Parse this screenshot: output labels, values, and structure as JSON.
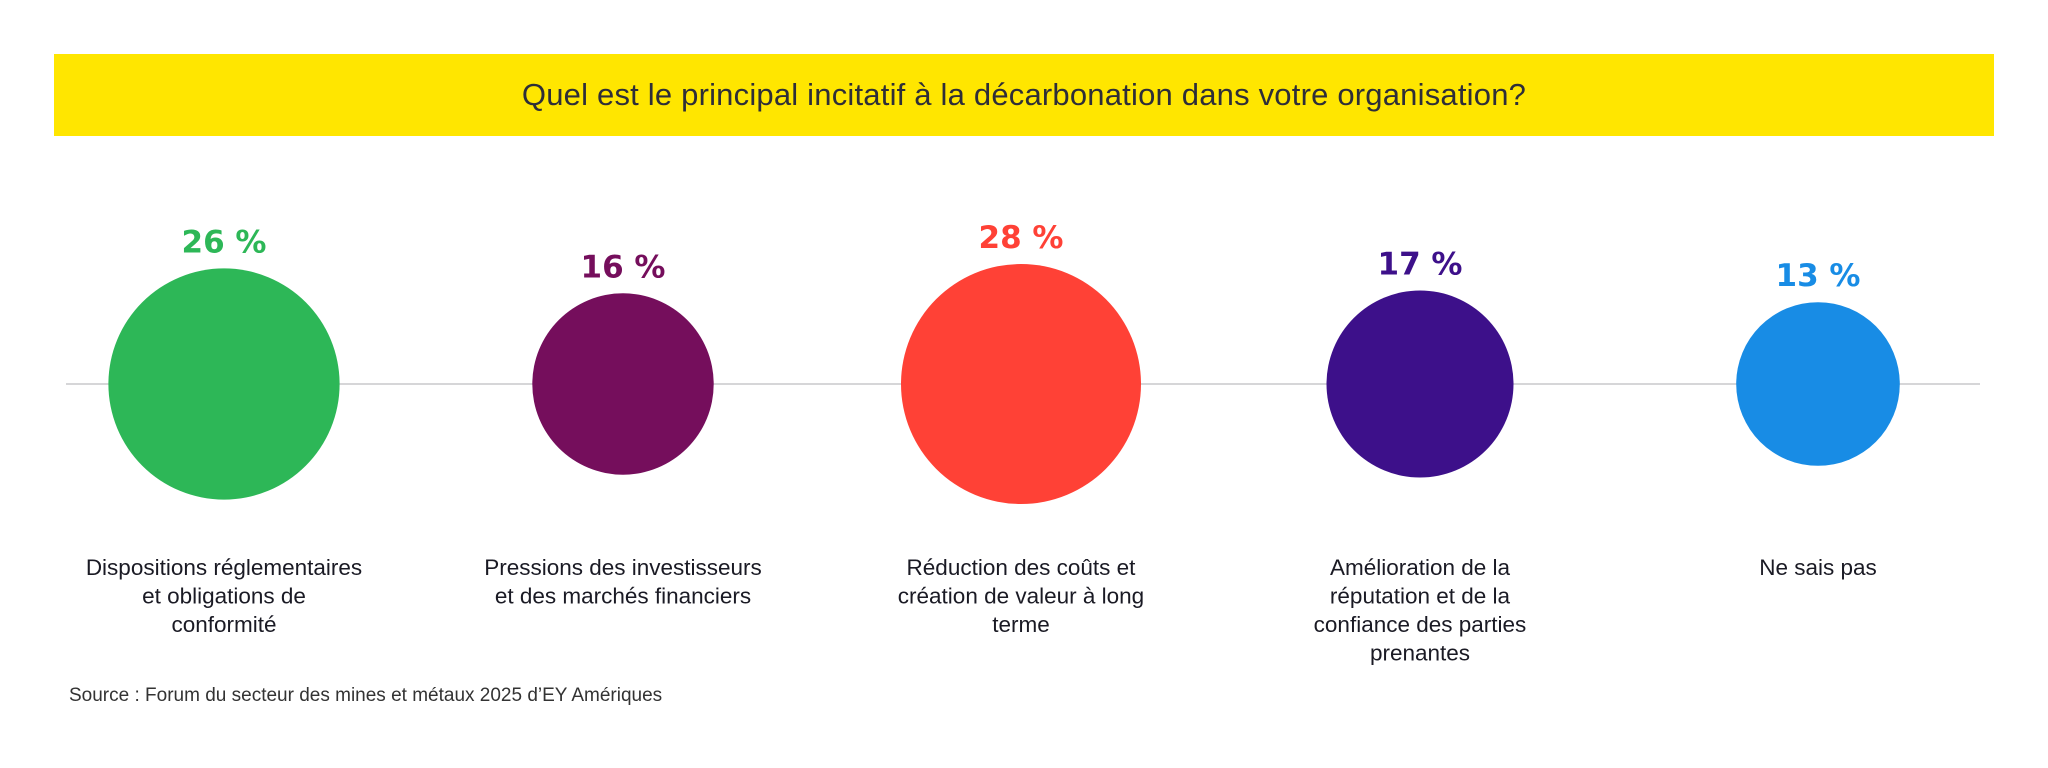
{
  "title": "Quel est le principal incitatif à la décarbonation dans votre organisation?",
  "colors": {
    "banner": "#ffe600",
    "title_text": "#2e2e38",
    "axis_line": "#c8c8cc",
    "label_text": "#1a1a24"
  },
  "chart_data": {
    "type": "bubble",
    "title": "Quel est le principal incitatif à la décarbonation dans votre organisation?",
    "unit": "%",
    "categories": [
      [
        "Dispositions réglementaires",
        "et obligations de",
        "conformité"
      ],
      [
        "Pressions des investisseurs",
        "et des marchés financiers"
      ],
      [
        "Réduction des coûts et",
        "création de valeur à long",
        "terme"
      ],
      [
        "Amélioration de la",
        "réputation et de la",
        "confiance des parties",
        "prenantes"
      ],
      [
        "Ne sais pas"
      ]
    ],
    "values": [
      26,
      16,
      28,
      17,
      13
    ],
    "value_labels": [
      "26 %",
      "16 %",
      "28 %",
      "17 %",
      "13 %"
    ],
    "colors": [
      "#2db757",
      "#750e5c",
      "#ff4136",
      "#3d108a",
      "#188ce5"
    ]
  },
  "source": "Source : Forum du secteur des mines et métaux 2025 d’EY Amériques"
}
